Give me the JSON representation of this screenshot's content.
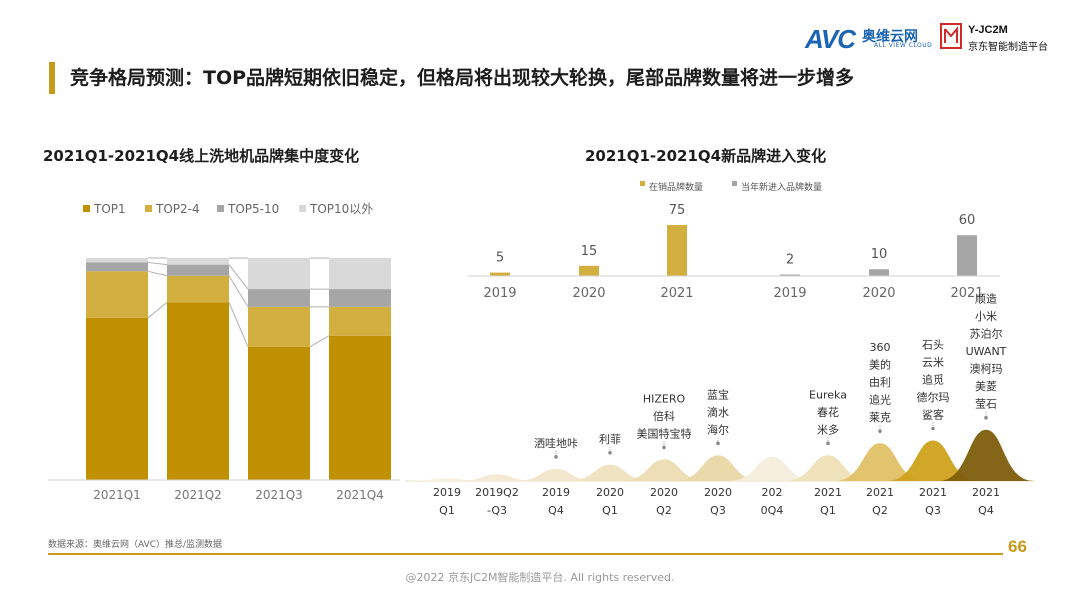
{
  "header": {
    "title": "竞争格局预测：TOP品牌短期依旧稳定，但格局将出现较大轮换，尾部品牌数量将进一步增多",
    "logo_avc": "AVC",
    "logo_avc_cn": "奥维云网",
    "logo_avc_sub": "ALL VIEW CLOUD",
    "logo_jc_top": "Y-JC2M",
    "logo_jc_bottom": "京东智能制造平台"
  },
  "left_chart": {
    "title": "2021Q1-2021Q4线上洗地机品牌集中度变化"
  },
  "right_chart": {
    "title": "2021Q1-2021Q4新品牌进入变化"
  },
  "footer": {
    "source": "数据来源：奥维云网（AVC）推总/监测数据",
    "page_number": "66",
    "copyright": "@2022 京东JC2M智能制造平台. All rights reserved."
  },
  "chart_data": [
    {
      "type": "bar",
      "stacked": true,
      "title": "2021Q1-2021Q4线上洗地机品牌集中度变化",
      "categories": [
        "2021Q1",
        "2021Q2",
        "2021Q3",
        "2021Q4"
      ],
      "series": [
        {
          "name": "TOP1",
          "values": [
            73,
            80,
            60,
            65
          ],
          "color": "#c09000"
        },
        {
          "name": "TOP2-4",
          "values": [
            21,
            12,
            18,
            13
          ],
          "color": "#d3af40"
        },
        {
          "name": "TOP5-10",
          "values": [
            4,
            5,
            8,
            8
          ],
          "color": "#a6a6a6"
        },
        {
          "name": "TOP10以外",
          "values": [
            2,
            3,
            14,
            14
          ],
          "color": "#d9d9d9"
        }
      ],
      "ylim": [
        0,
        100
      ],
      "legend": "top-left",
      "grid": false
    },
    {
      "type": "bar",
      "title": "2021Q1-2021Q4新品牌进入变化",
      "series": [
        {
          "name": "在销品牌数量",
          "color": "#d3af40",
          "x": [
            "2019",
            "2020",
            "2021"
          ],
          "values": [
            5,
            15,
            75
          ]
        },
        {
          "name": "当年新进入品牌数量",
          "color": "#a6a6a6",
          "x": [
            "2019",
            "2020",
            "2021"
          ],
          "values": [
            2,
            10,
            60
          ]
        }
      ],
      "legend": "top",
      "grid": false
    },
    {
      "type": "area",
      "title": "",
      "categories": [
        [
          "2019",
          "Q1"
        ],
        [
          "2019Q2",
          "-Q3"
        ],
        [
          "2019",
          "Q4"
        ],
        [
          "2020",
          "Q1"
        ],
        [
          "2020",
          "Q2"
        ],
        [
          "2020",
          "Q3"
        ],
        [
          "202",
          "0Q4"
        ],
        [
          "2021",
          "Q1"
        ],
        [
          "2021",
          "Q2"
        ],
        [
          "2021",
          "Q3"
        ],
        [
          "2021",
          "Q4"
        ]
      ],
      "peaks": [
        2,
        5,
        9,
        12,
        16,
        19,
        18,
        19,
        28,
        30,
        38
      ],
      "colors": [
        "#f7f0dd",
        "#f4ead2",
        "#f1e6c9",
        "#efe2bf",
        "#ecdcb2",
        "#e9d7a6",
        "#f5eedb",
        "#efe0b6",
        "#e0c167",
        "#cfa21c",
        "#7e5d0c"
      ],
      "brands": [
        [],
        [],
        [
          "洒哇地咔"
        ],
        [
          "利菲"
        ],
        [
          "HIZERO",
          "倍科",
          "美国特宝特"
        ],
        [
          "蓝宝",
          "滴水",
          "海尔"
        ],
        [],
        [
          "Eureka",
          "春花",
          "米多"
        ],
        [
          "360",
          "美的",
          "由利",
          "追光",
          "莱克"
        ],
        [
          "石头",
          "云米",
          "追觅",
          "德尔玛",
          "鲨客"
        ],
        [
          "顺造",
          "小米",
          "苏泊尔",
          "UWANT",
          "澳柯玛",
          "美菱",
          "莹石"
        ]
      ]
    }
  ]
}
